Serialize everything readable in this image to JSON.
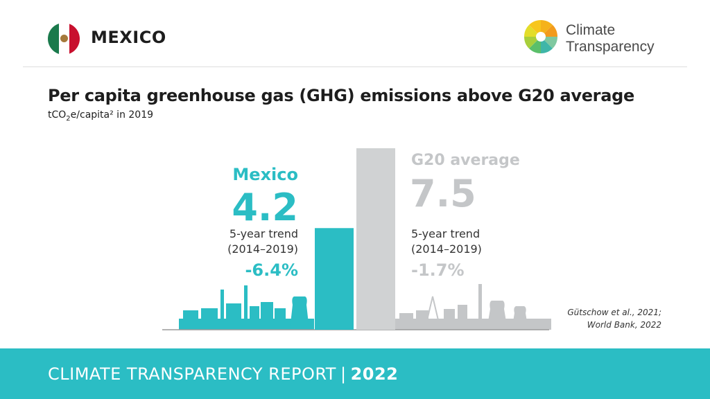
{
  "header": {
    "country": "MEXICO",
    "logo_line1": "Climate",
    "logo_line2": "Transparency"
  },
  "title": "Per capita greenhouse gas (GHG) emissions above G20 average",
  "subtitle": {
    "prefix": "tCO",
    "sub": "2",
    "suffix": "e/capita² in 2019"
  },
  "chart_data": {
    "type": "bar",
    "categories": [
      "Mexico",
      "G20 average"
    ],
    "values": [
      4.2,
      7.5
    ],
    "colors": [
      "#2bbdc4",
      "#d0d2d3"
    ],
    "trend_label_line1": "5-year trend",
    "trend_label_line2": "(2014–2019)",
    "labels": [
      {
        "name": "Mexico",
        "value": "4.2",
        "trend": "-6.4%",
        "color": "#2bbdc4"
      },
      {
        "name": "G20 average",
        "value": "7.5",
        "trend": "-1.7%",
        "color": "#c4c6c8"
      }
    ]
  },
  "source": {
    "line1": "Gütschow et al., 2021;",
    "line2": "World Bank, 2022"
  },
  "footer": {
    "text": "CLIMATE TRANSPARENCY REPORT",
    "separator": "|",
    "year": "2022"
  }
}
